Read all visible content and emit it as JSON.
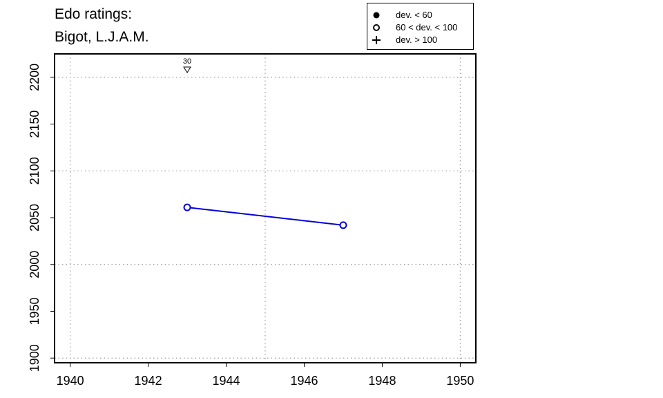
{
  "title": [
    "Edo ratings:",
    "Bigot, L.J.A.M."
  ],
  "legend": [
    {
      "symbol": "filled-circle",
      "label": "dev. < 60"
    },
    {
      "symbol": "open-circle",
      "label": "60 < dev. < 100"
    },
    {
      "symbol": "plus",
      "label": "dev. > 100"
    }
  ],
  "colors": {
    "series": "#0000dd",
    "grid": "#999999",
    "axis": "#000000"
  },
  "chart_data": {
    "type": "line",
    "title": "Edo ratings: Bigot, L.J.A.M.",
    "xlabel": "",
    "ylabel": "",
    "xlim": [
      1939.6,
      1950.4
    ],
    "ylim": [
      1895,
      2225
    ],
    "x_ticks": [
      1940,
      1942,
      1944,
      1946,
      1948,
      1950
    ],
    "y_ticks": [
      1900,
      1950,
      2000,
      2050,
      2100,
      2150,
      2200
    ],
    "x_grid": [
      1940,
      1945,
      1950
    ],
    "y_grid": [
      1900,
      2000,
      2100,
      2200
    ],
    "grid": true,
    "legend_position": "top-right",
    "series": [
      {
        "points": [
          {
            "x": 1943,
            "y": 2061,
            "marker": "open-circle"
          },
          {
            "x": 1947,
            "y": 2042,
            "marker": "open-circle"
          }
        ]
      }
    ],
    "annotations": [
      {
        "x": 1943,
        "text": "30",
        "marker": "down-triangle",
        "position": "above-plot"
      }
    ]
  }
}
